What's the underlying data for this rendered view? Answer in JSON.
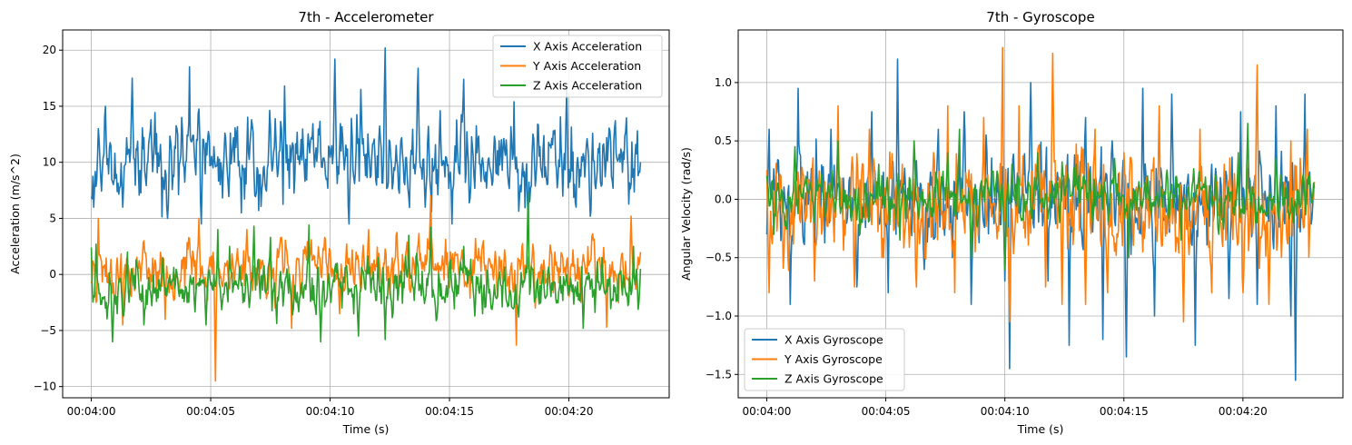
{
  "chart_data": [
    {
      "type": "line",
      "title": "7th - Accelerometer",
      "xlabel": "Time (s)",
      "ylabel": "Acceleration (m/s^2)",
      "x_tick_labels": [
        "00:04:00",
        "00:04:05",
        "00:04:10",
        "00:04:15",
        "00:04:20"
      ],
      "x_tick_seconds": [
        240,
        245,
        250,
        255,
        260
      ],
      "xlim": [
        238.8,
        264.2
      ],
      "ylim": [
        -11,
        21.8
      ],
      "y_ticks": [
        -10,
        -5,
        0,
        5,
        10,
        15,
        20
      ],
      "y_tick_labels": [
        "−10",
        "−5",
        "0",
        "5",
        "10",
        "15",
        "20"
      ],
      "grid": true,
      "legend_position": "top-right",
      "series": [
        {
          "name": "X Axis Acceleration",
          "color": "#1f77b4",
          "base": 10,
          "amp": 3.2,
          "seed": 11,
          "peaks": [
            [
              240.1,
              6
            ],
            [
              240.3,
              13
            ],
            [
              240.6,
              15
            ],
            [
              241.3,
              6
            ],
            [
              241.7,
              17.5
            ],
            [
              242.5,
              13.8
            ],
            [
              243.2,
              5
            ],
            [
              243.6,
              13
            ],
            [
              244.1,
              18.5
            ],
            [
              244.6,
              4.5
            ],
            [
              245.6,
              12.6
            ],
            [
              246.3,
              5.5
            ],
            [
              246.7,
              13.8
            ],
            [
              247.0,
              5.7
            ],
            [
              248.1,
              16.8
            ],
            [
              249.2,
              12.2
            ],
            [
              250.2,
              19.2
            ],
            [
              250.8,
              4.5
            ],
            [
              251.3,
              16.5
            ],
            [
              252.3,
              20.2
            ],
            [
              253.7,
              18.4
            ],
            [
              254.0,
              6
            ],
            [
              254.6,
              14.6
            ],
            [
              255.1,
              4.5
            ],
            [
              255.6,
              17.4
            ],
            [
              257.7,
              15.4
            ],
            [
              258.3,
              5
            ],
            [
              258.8,
              11.4
            ],
            [
              259.9,
              16.5
            ],
            [
              260.3,
              6
            ],
            [
              261.6,
              12.2
            ],
            [
              262.7,
              9.4
            ],
            [
              263.0,
              10
            ]
          ],
          "noise": 1.8
        },
        {
          "name": "Y Axis Acceleration",
          "color": "#ff7f0e",
          "base": 0.6,
          "amp": 1.4,
          "seed": 23,
          "peaks": [
            [
              240.0,
              -0.8
            ],
            [
              240.2,
              -2.5
            ],
            [
              240.3,
              5
            ],
            [
              241.0,
              -2.2
            ],
            [
              241.3,
              -4.5
            ],
            [
              242.2,
              3
            ],
            [
              243.1,
              -4
            ],
            [
              244.1,
              3.2
            ],
            [
              244.5,
              5
            ],
            [
              245.2,
              -9.5
            ],
            [
              245.6,
              1
            ],
            [
              246.5,
              4
            ],
            [
              247.7,
              -3
            ],
            [
              248.4,
              -4.8
            ],
            [
              249.2,
              3.1
            ],
            [
              250.4,
              -3.5
            ],
            [
              251.4,
              2.6
            ],
            [
              252.5,
              -1.8
            ],
            [
              254.2,
              7
            ],
            [
              255.1,
              0.5
            ],
            [
              256.1,
              3.2
            ],
            [
              257.0,
              -2
            ],
            [
              257.8,
              -6.3
            ],
            [
              258.6,
              -3
            ],
            [
              259.4,
              2
            ],
            [
              260.5,
              -2.5
            ],
            [
              261.6,
              -4.7
            ],
            [
              262.6,
              5.2
            ],
            [
              262.7,
              0
            ],
            [
              263.0,
              2
            ]
          ],
          "noise": 1.6
        },
        {
          "name": "Z Axis Acceleration",
          "color": "#2ca02c",
          "base": -1.2,
          "amp": 1.6,
          "seed": 37,
          "peaks": [
            [
              240.0,
              2.4
            ],
            [
              240.2,
              2.7
            ],
            [
              240.6,
              -3
            ],
            [
              240.9,
              -6
            ],
            [
              241.5,
              2
            ],
            [
              242.2,
              -4.5
            ],
            [
              243.0,
              1.5
            ],
            [
              244.0,
              -2.5
            ],
            [
              244.8,
              -4.5
            ],
            [
              245.3,
              4
            ],
            [
              245.8,
              2.5
            ],
            [
              246.3,
              -1
            ],
            [
              246.8,
              4.3
            ],
            [
              247.5,
              3.3
            ],
            [
              248.2,
              0.5
            ],
            [
              248.8,
              -1
            ],
            [
              249.1,
              4.4
            ],
            [
              249.6,
              -6
            ],
            [
              250.3,
              1
            ],
            [
              251.2,
              -5.5
            ],
            [
              252.0,
              1.5
            ],
            [
              252.3,
              -5.8
            ],
            [
              253.3,
              3.5
            ],
            [
              254.2,
              4.2
            ],
            [
              254.8,
              -2.5
            ],
            [
              255.6,
              2.5
            ],
            [
              256.4,
              -3.5
            ],
            [
              257.1,
              0.2
            ],
            [
              257.9,
              -3.8
            ],
            [
              258.3,
              7.3
            ],
            [
              259.0,
              -2
            ],
            [
              259.9,
              0
            ],
            [
              260.6,
              -4.8
            ],
            [
              261.4,
              1.5
            ],
            [
              262.0,
              -1.8
            ],
            [
              262.7,
              2.5
            ],
            [
              263.0,
              0.5
            ]
          ],
          "noise": 1.3
        }
      ]
    },
    {
      "type": "line",
      "title": "7th - Gyroscope",
      "xlabel": "Time (s)",
      "ylabel": "Angular Velocity (rad/s)",
      "x_tick_labels": [
        "00:04:00",
        "00:04:05",
        "00:04:10",
        "00:04:15",
        "00:04:20"
      ],
      "x_tick_seconds": [
        240,
        245,
        250,
        255,
        260
      ],
      "xlim": [
        238.8,
        264.2
      ],
      "ylim": [
        -1.7,
        1.45
      ],
      "y_ticks": [
        -1.5,
        -1.0,
        -0.5,
        0.0,
        0.5,
        1.0
      ],
      "y_tick_labels": [
        "−1.5",
        "−1.0",
        "−0.5",
        "0.0",
        "0.5",
        "1.0"
      ],
      "grid": true,
      "legend_position": "bottom-left",
      "series": [
        {
          "name": "X Axis Gyroscope",
          "color": "#1f77b4",
          "base": 0.0,
          "amp": 0.28,
          "seed": 51,
          "peaks": [
            [
              240.0,
              -0.3
            ],
            [
              240.1,
              0.6
            ],
            [
              241.0,
              -0.9
            ],
            [
              241.3,
              0.95
            ],
            [
              242.0,
              -0.6
            ],
            [
              242.7,
              0.6
            ],
            [
              243.8,
              -0.75
            ],
            [
              244.4,
              0.75
            ],
            [
              245.1,
              -0.8
            ],
            [
              245.5,
              1.2
            ],
            [
              246.6,
              -0.6
            ],
            [
              247.2,
              0.6
            ],
            [
              247.8,
              -0.5
            ],
            [
              248.3,
              0.75
            ],
            [
              248.6,
              -0.9
            ],
            [
              249.2,
              0.55
            ],
            [
              250.0,
              -0.7
            ],
            [
              250.2,
              -1.45
            ],
            [
              251.1,
              1.0
            ],
            [
              251.8,
              -0.7
            ],
            [
              252.7,
              -1.25
            ],
            [
              253.4,
              0.7
            ],
            [
              254.1,
              -1.2
            ],
            [
              254.5,
              0.5
            ],
            [
              255.1,
              -1.35
            ],
            [
              255.8,
              0.95
            ],
            [
              256.3,
              -1.0
            ],
            [
              257.0,
              0.9
            ],
            [
              258.0,
              -1.25
            ],
            [
              258.7,
              0.3
            ],
            [
              259.4,
              -0.85
            ],
            [
              259.9,
              0.75
            ],
            [
              260.6,
              -0.9
            ],
            [
              261.4,
              0.8
            ],
            [
              262.0,
              -1.0
            ],
            [
              262.2,
              -1.55
            ],
            [
              262.6,
              0.9
            ],
            [
              263.0,
              0.1
            ]
          ],
          "noise": 0.22
        },
        {
          "name": "Y Axis Gyroscope",
          "color": "#ff7f0e",
          "base": -0.05,
          "amp": 0.3,
          "seed": 67,
          "peaks": [
            [
              240.0,
              0.25
            ],
            [
              240.1,
              -0.8
            ],
            [
              240.6,
              0.2
            ],
            [
              241.4,
              -0.2
            ],
            [
              242.0,
              -0.7
            ],
            [
              243.0,
              0.8
            ],
            [
              243.7,
              -0.75
            ],
            [
              244.3,
              0.6
            ],
            [
              244.9,
              -0.5
            ],
            [
              245.7,
              0.3
            ],
            [
              246.3,
              -0.75
            ],
            [
              247.0,
              0.4
            ],
            [
              247.6,
              0.8
            ],
            [
              247.9,
              -0.8
            ],
            [
              248.5,
              0.25
            ],
            [
              249.1,
              0.7
            ],
            [
              249.6,
              -0.2
            ],
            [
              249.9,
              1.3
            ],
            [
              250.2,
              -1.05
            ],
            [
              250.6,
              0.8
            ],
            [
              251.3,
              0.3
            ],
            [
              251.7,
              -0.75
            ],
            [
              252.0,
              1.25
            ],
            [
              252.4,
              -0.9
            ],
            [
              253.4,
              -0.9
            ],
            [
              253.8,
              0.6
            ],
            [
              254.3,
              -0.8
            ],
            [
              255.0,
              0.4
            ],
            [
              255.8,
              -0.45
            ],
            [
              256.5,
              0.8
            ],
            [
              256.9,
              -0.25
            ],
            [
              257.5,
              -1.05
            ],
            [
              258.2,
              0.6
            ],
            [
              258.7,
              -0.8
            ],
            [
              259.2,
              0.3
            ],
            [
              260.0,
              -0.8
            ],
            [
              260.6,
              1.15
            ],
            [
              261.1,
              -0.9
            ],
            [
              262.0,
              0.5
            ],
            [
              262.7,
              0.6
            ],
            [
              263.0,
              0.15
            ]
          ],
          "noise": 0.25
        },
        {
          "name": "Z Axis Gyroscope",
          "color": "#2ca02c",
          "base": 0.02,
          "amp": 0.14,
          "seed": 83,
          "peaks": [
            [
              240.0,
              0.2
            ],
            [
              240.3,
              -0.3
            ],
            [
              241.2,
              0.45
            ],
            [
              242.0,
              -0.2
            ],
            [
              243.0,
              0.5
            ],
            [
              243.9,
              -0.3
            ],
            [
              244.7,
              0.3
            ],
            [
              245.6,
              -0.35
            ],
            [
              246.2,
              0.5
            ],
            [
              246.9,
              -0.15
            ],
            [
              247.6,
              0.4
            ],
            [
              248.1,
              0.6
            ],
            [
              248.6,
              -0.5
            ],
            [
              249.3,
              0.1
            ],
            [
              250.0,
              -0.6
            ],
            [
              250.3,
              0.3
            ],
            [
              251.0,
              0.15
            ],
            [
              251.4,
              0.4
            ],
            [
              252.3,
              -0.2
            ],
            [
              253.0,
              0.3
            ],
            [
              253.7,
              -0.2
            ],
            [
              254.6,
              0.35
            ],
            [
              255.2,
              -0.5
            ],
            [
              256.0,
              0.2
            ],
            [
              256.8,
              0.25
            ],
            [
              257.4,
              -0.35
            ],
            [
              258.4,
              0.1
            ],
            [
              259.0,
              -0.3
            ],
            [
              259.8,
              0.4
            ],
            [
              260.2,
              0.65
            ],
            [
              260.6,
              -0.2
            ],
            [
              261.4,
              0.35
            ],
            [
              262.1,
              -0.2
            ],
            [
              262.8,
              0.2
            ],
            [
              263.0,
              0.1
            ]
          ],
          "noise": 0.12
        }
      ]
    }
  ]
}
